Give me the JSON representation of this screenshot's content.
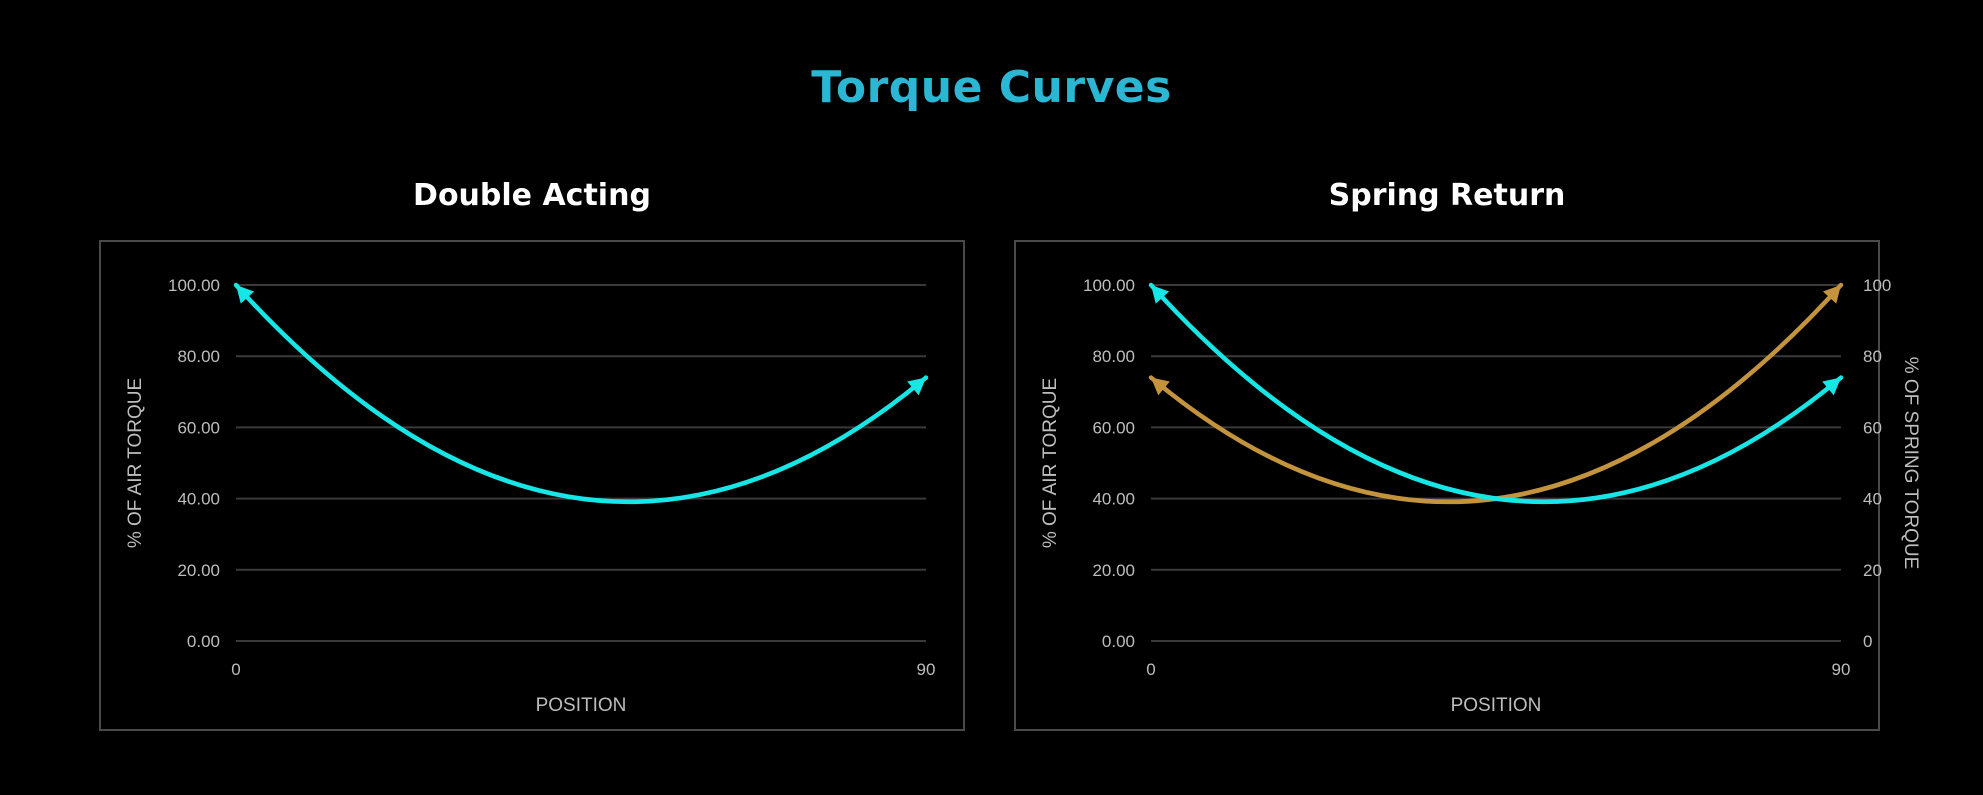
{
  "page_title": "Torque Curves",
  "colors": {
    "title": "#2bb7d3",
    "air": "#17e6e6",
    "spring": "#c3933e"
  },
  "chart_data": [
    {
      "type": "line",
      "title": "Double Acting",
      "xlabel": "POSITION",
      "ylabel": "% OF AIR TORQUE",
      "xlim": [
        0,
        90
      ],
      "ylim": [
        0,
        100
      ],
      "x_ticks": [
        "0",
        "90"
      ],
      "y_ticks": [
        "0.00",
        "20.00",
        "40.00",
        "60.00",
        "80.00",
        "100.00"
      ],
      "grid": true,
      "series": [
        {
          "color": "#17e6e6",
          "axis": "left",
          "x": [
            0,
            45,
            90
          ],
          "y": [
            100,
            40,
            74
          ]
        }
      ]
    },
    {
      "type": "line",
      "title": "Spring Return",
      "xlabel": "POSITION",
      "ylabel": "% OF AIR TORQUE",
      "ylabel_right": "% OF SPRING TORQUE",
      "xlim": [
        0,
        90
      ],
      "ylim": [
        0,
        100
      ],
      "ylim_right": [
        0,
        100
      ],
      "x_ticks": [
        "0",
        "90"
      ],
      "y_ticks": [
        "0.00",
        "20.00",
        "40.00",
        "60.00",
        "80.00",
        "100.00"
      ],
      "y_ticks_right": [
        "0",
        "20",
        "40",
        "60",
        "80",
        "100"
      ],
      "grid": true,
      "series": [
        {
          "color": "#c3933e",
          "axis": "right",
          "x": [
            0,
            45,
            90
          ],
          "y": [
            74,
            40,
            100
          ]
        },
        {
          "color": "#17e6e6",
          "axis": "left",
          "x": [
            0,
            45,
            90
          ],
          "y": [
            100,
            40,
            74
          ]
        }
      ]
    }
  ]
}
